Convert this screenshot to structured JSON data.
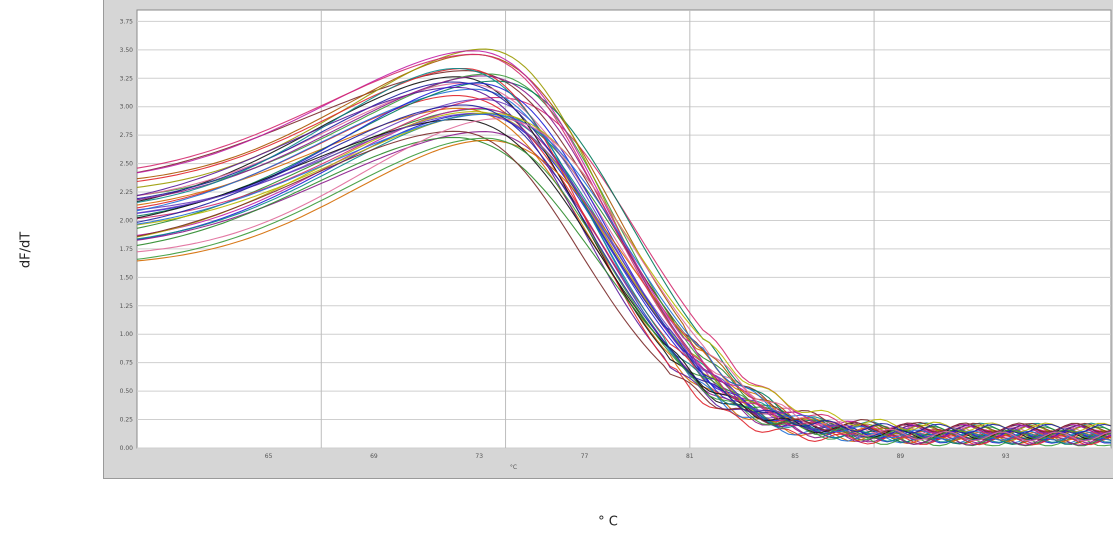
{
  "chart_data": {
    "type": "line",
    "title": "",
    "xlabel": "° C",
    "ylabel": "dF/dT",
    "x_unit_label": "°C",
    "xlim": [
      60,
      97
    ],
    "ylim": [
      0.0,
      3.85
    ],
    "x_ticks": [
      "65",
      "69",
      "73",
      "77",
      "81",
      "85",
      "89",
      "93"
    ],
    "y_ticks": [
      "0.00",
      "0.25",
      "0.50",
      "0.75",
      "1.00",
      "1.25",
      "1.50",
      "1.75",
      "2.00",
      "2.25",
      "2.50",
      "2.75",
      "3.00",
      "3.25",
      "3.50",
      "3.75"
    ],
    "grid": true,
    "x_gridlines": [
      67,
      74,
      81,
      88
    ],
    "series_style": "many overlapping melt curves",
    "curve_count": 36,
    "peak_x_range": [
      72.0,
      73.8
    ],
    "peak_y_range": [
      2.55,
      3.55
    ],
    "baseline_left_range": [
      1.55,
      2.35
    ],
    "baseline_right_range": [
      0.05,
      0.18
    ],
    "colors": [
      "#1f1fd6",
      "#e0232b",
      "#8b1a8b",
      "#2a8a2a",
      "#d46a00",
      "#0a8a8a",
      "#c21fa6",
      "#111111",
      "#6b3fbf",
      "#b8b800",
      "#d42a6e",
      "#1f6fd6",
      "#7a2a2a",
      "#3a9a3a",
      "#e06a9a",
      "#2020a0",
      "#aa5500",
      "#007a5a",
      "#9a9a00",
      "#5a1a9a"
    ]
  }
}
